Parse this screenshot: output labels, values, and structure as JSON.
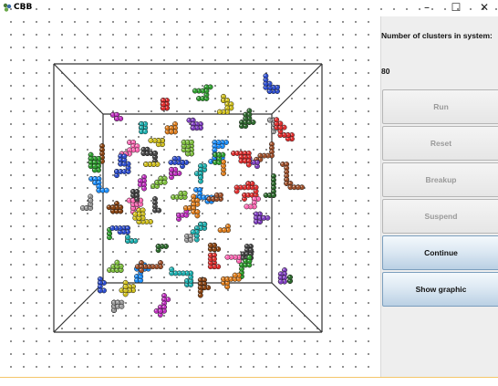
{
  "window": {
    "title": "CBB",
    "minimize_glyph": "–",
    "maximize_glyph": "☐",
    "close_glyph": "✕",
    "icon": "app-icon"
  },
  "panel": {
    "clusters_label": "Number of clusters in system:",
    "clusters_value": "80",
    "buttons": [
      {
        "label": "Run",
        "enabled": false
      },
      {
        "label": "Reset",
        "enabled": false
      },
      {
        "label": "Breakup",
        "enabled": false
      },
      {
        "label": "Suspend",
        "enabled": false
      },
      {
        "label": "Continue",
        "enabled": true
      },
      {
        "label": "Show graphic",
        "enabled": true
      }
    ]
  },
  "colors": {
    "box_edge": "#333333",
    "button_active_bg": "#c8dbeb",
    "button_disabled_text": "#9a9a9a",
    "cluster_palette": [
      "#e03030",
      "#30a030",
      "#3050d0",
      "#d0c020",
      "#c030c0",
      "#20b0b0",
      "#e08020",
      "#8040c0",
      "#2e6b2e",
      "#999999",
      "#8b4513",
      "#ff69b4",
      "#4a4a4a",
      "#7fbf3f",
      "#1e90ff",
      "#a0522d"
    ]
  }
}
